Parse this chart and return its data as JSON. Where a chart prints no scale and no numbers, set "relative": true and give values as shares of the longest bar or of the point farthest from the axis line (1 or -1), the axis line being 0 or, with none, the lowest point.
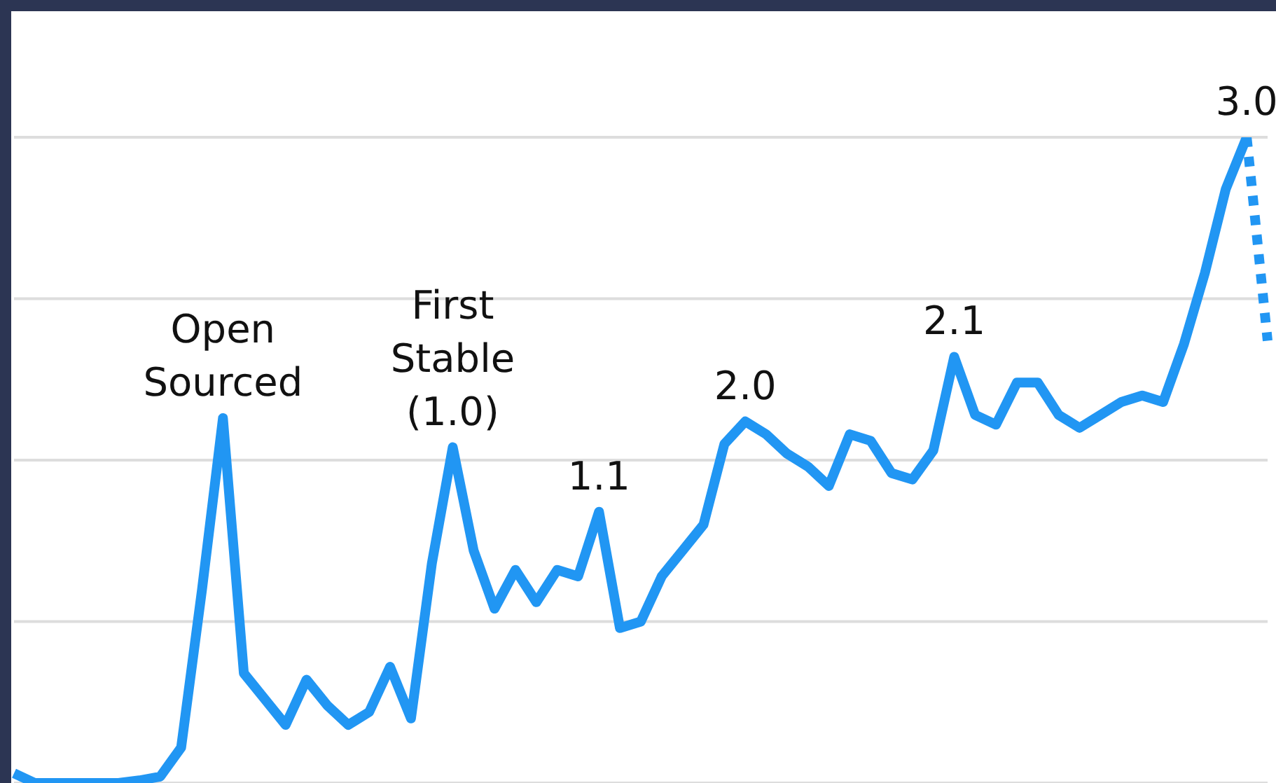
{
  "chart_data": {
    "type": "line",
    "relative": true,
    "grid": "y",
    "legend": false,
    "marker": "none",
    "categories": [
      null,
      null,
      null,
      null,
      null,
      null,
      null,
      null,
      null,
      null,
      null,
      null,
      null,
      null,
      null,
      null,
      null,
      null,
      null,
      null,
      null,
      null,
      null,
      null,
      null,
      null,
      null,
      null,
      null,
      null,
      null,
      null,
      null,
      null,
      null,
      null,
      null,
      null,
      null,
      null,
      null,
      null,
      null,
      null,
      null,
      null,
      null,
      null,
      null,
      null,
      null,
      null,
      null,
      null,
      null,
      null,
      null,
      null,
      null,
      null,
      null
    ],
    "series": [
      {
        "color": "#2196f3",
        "line_style": "solid",
        "values": [
          0.015,
          0,
          0,
          0,
          0,
          0,
          0.004,
          0.01,
          0.055,
          0.3,
          0.565,
          0.17,
          0.13,
          0.09,
          0.16,
          0.12,
          0.09,
          0.11,
          0.18,
          0.1,
          0.34,
          0.52,
          0.36,
          0.27,
          0.33,
          0.28,
          0.33,
          0.32,
          0.42,
          0.24,
          0.25,
          0.32,
          0.36,
          0.4,
          0.525,
          0.56,
          0.54,
          0.51,
          0.49,
          0.46,
          0.54,
          0.53,
          0.48,
          0.47,
          0.515,
          0.66,
          0.57,
          0.555,
          0.62,
          0.62,
          0.57,
          0.55,
          0.57,
          0.59,
          0.6,
          0.59,
          0.68,
          0.79,
          0.92,
          1,
          null
        ]
      },
      {
        "color": "#2196f3",
        "line_style": "dotted",
        "values": [
          null,
          null,
          null,
          null,
          null,
          null,
          null,
          null,
          null,
          null,
          null,
          null,
          null,
          null,
          null,
          null,
          null,
          null,
          null,
          null,
          null,
          null,
          null,
          null,
          null,
          null,
          null,
          null,
          null,
          null,
          null,
          null,
          null,
          null,
          null,
          null,
          null,
          null,
          null,
          null,
          null,
          null,
          null,
          null,
          null,
          null,
          null,
          null,
          null,
          null,
          null,
          null,
          null,
          null,
          null,
          null,
          null,
          null,
          null,
          1,
          0.685
        ]
      }
    ],
    "annotations": [
      {
        "text": "Open Sourced",
        "y": 0.565
      },
      {
        "text": "First Stable (1.0)",
        "y": 0.52
      },
      {
        "text": "1.1",
        "y": 0.42
      },
      {
        "text": "2.0",
        "y": 0.56
      },
      {
        "text": "2.1",
        "y": 0.66
      },
      {
        "text": "3.0",
        "y": 1
      }
    ]
  }
}
